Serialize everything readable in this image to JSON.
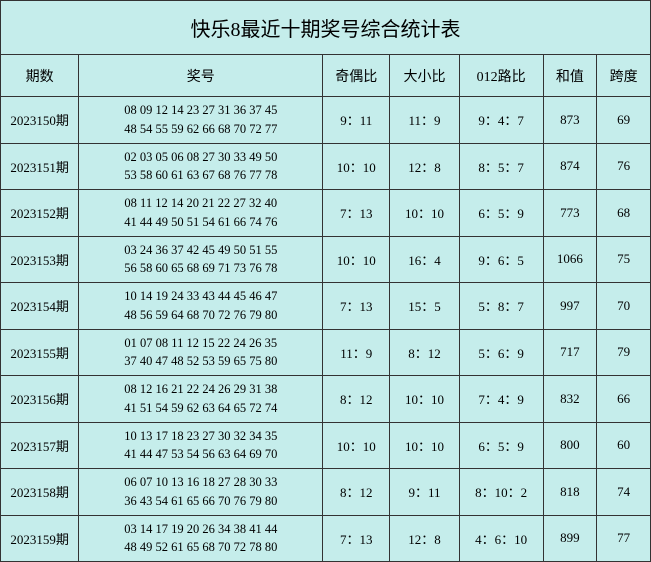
{
  "title": "快乐8最近十期奖号综合统计表",
  "columns": {
    "period": "期数",
    "numbers": "奖号",
    "odd_even": "奇偶比",
    "big_small": "大小比",
    "route_012": "012路比",
    "sum": "和值",
    "span": "跨度"
  },
  "rows": [
    {
      "period": "2023150期",
      "line1": "08 09 12 14 23 27 31 36 37 45",
      "line2": "48 54 55 59 62 66 68 70 72 77",
      "odd_even": "9：11",
      "big_small": "11：9",
      "route_012": "9：4：7",
      "sum": "873",
      "span": "69"
    },
    {
      "period": "2023151期",
      "line1": "02 03 05 06 08 27 30 33 49 50",
      "line2": "53 58 60 61 63 67 68 76 77 78",
      "odd_even": "10：10",
      "big_small": "12：8",
      "route_012": "8：5：7",
      "sum": "874",
      "span": "76"
    },
    {
      "period": "2023152期",
      "line1": "08 11 12 14 20 21 22 27 32 40",
      "line2": "41 44 49 50 51 54 61 66 74 76",
      "odd_even": "7：13",
      "big_small": "10：10",
      "route_012": "6：5：9",
      "sum": "773",
      "span": "68"
    },
    {
      "period": "2023153期",
      "line1": "03 24 36 37 42 45 49 50 51 55",
      "line2": "56 58 60 65 68 69 71 73 76 78",
      "odd_even": "10：10",
      "big_small": "16：4",
      "route_012": "9：6：5",
      "sum": "1066",
      "span": "75"
    },
    {
      "period": "2023154期",
      "line1": "10 14 19 24 33 43 44 45 46 47",
      "line2": "48 56 59 64 68 70 72 76 79 80",
      "odd_even": "7：13",
      "big_small": "15：5",
      "route_012": "5：8：7",
      "sum": "997",
      "span": "70"
    },
    {
      "period": "2023155期",
      "line1": "01 07 08 11 12 15 22 24 26 35",
      "line2": "37 40 47 48 52 53 59 65 75 80",
      "odd_even": "11：9",
      "big_small": "8：12",
      "route_012": "5：6：9",
      "sum": "717",
      "span": "79"
    },
    {
      "period": "2023156期",
      "line1": "08 12 16 21 22 24 26 29 31 38",
      "line2": "41 51 54 59 62 63 64 65 72 74",
      "odd_even": "8：12",
      "big_small": "10：10",
      "route_012": "7：4：9",
      "sum": "832",
      "span": "66"
    },
    {
      "period": "2023157期",
      "line1": "10 13 17 18 23 27 30 32 34 35",
      "line2": "41 44 47 53 54 56 63 64 69 70",
      "odd_even": "10：10",
      "big_small": "10：10",
      "route_012": "6：5：9",
      "sum": "800",
      "span": "60"
    },
    {
      "period": "2023158期",
      "line1": "06 07 10 13 16 18 27 28 30 33",
      "line2": "36 43 54 61 65 66 70 76 79 80",
      "odd_even": "8：12",
      "big_small": "9：11",
      "route_012": "8：10：2",
      "sum": "818",
      "span": "74"
    },
    {
      "period": "2023159期",
      "line1": "03 14 17 19 20 26 34 38 41 44",
      "line2": "48 49 52 61 65 68 70 72 78 80",
      "odd_even": "7：13",
      "big_small": "12：8",
      "route_012": "4：6：10",
      "sum": "899",
      "span": "77"
    }
  ]
}
